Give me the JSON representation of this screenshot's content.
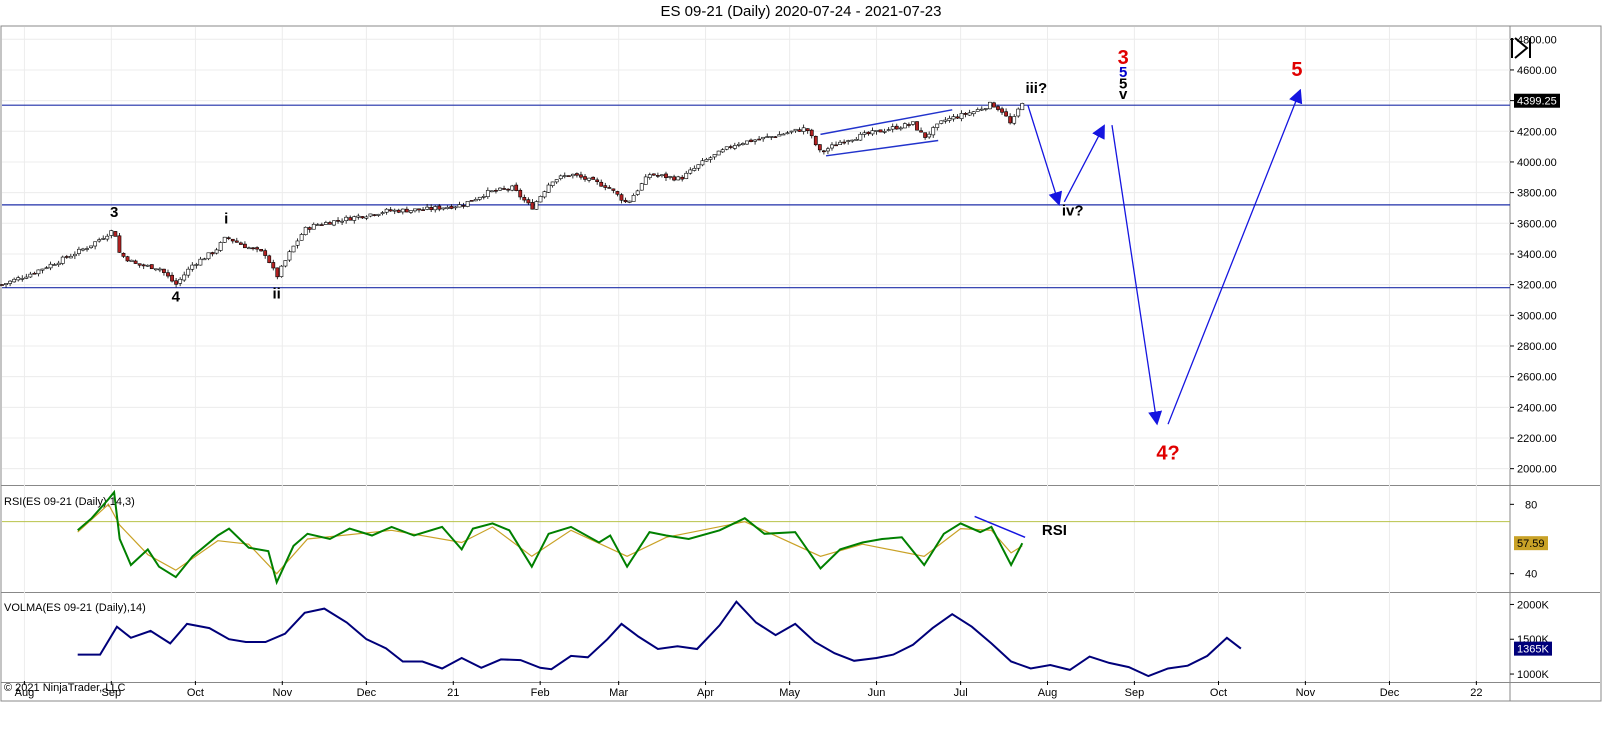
{
  "window": {
    "title": "ES 09-21 (Daily)  2020-07-24 - 2021-07-23"
  },
  "copyright": "© 2021 NinjaTrader, LLC",
  "chart_data": [
    {
      "type": "candlestick",
      "panel": "price",
      "instrument": "ES 09-21 (Daily)",
      "ylim": [
        1900,
        4880
      ],
      "y_ticks": [
        "4800.00",
        "4600.00",
        "4400.00",
        "4200.00",
        "4000.00",
        "3800.00",
        "3600.00",
        "3400.00",
        "3200.00",
        "3000.00",
        "2800.00",
        "2600.00",
        "2400.00",
        "2200.00",
        "2000.00"
      ],
      "last_price": "4399.25",
      "x_months": [
        "Aug",
        "Sep",
        "Oct",
        "Nov",
        "Dec",
        "21",
        "Feb",
        "Mar",
        "Apr",
        "May",
        "Jun",
        "Jul",
        "Aug",
        "Sep",
        "Oct",
        "Nov",
        "Dec",
        "22"
      ],
      "close_path": [
        [
          "2020-07-24",
          3200
        ],
        [
          "2020-08-03",
          3270
        ],
        [
          "2020-08-14",
          3360
        ],
        [
          "2020-08-24",
          3450
        ],
        [
          "2020-09-02",
          3560
        ],
        [
          "2020-09-04",
          3400
        ],
        [
          "2020-09-10",
          3330
        ],
        [
          "2020-09-18",
          3310
        ],
        [
          "2020-09-24",
          3200
        ],
        [
          "2020-09-30",
          3330
        ],
        [
          "2020-10-08",
          3420
        ],
        [
          "2020-10-12",
          3510
        ],
        [
          "2020-10-20",
          3440
        ],
        [
          "2020-10-26",
          3400
        ],
        [
          "2020-10-30",
          3250
        ],
        [
          "2020-11-04",
          3420
        ],
        [
          "2020-11-09",
          3560
        ],
        [
          "2020-11-13",
          3590
        ],
        [
          "2020-11-24",
          3630
        ],
        [
          "2020-12-08",
          3680
        ],
        [
          "2020-12-22",
          3690
        ],
        [
          "2021-01-04",
          3720
        ],
        [
          "2021-01-13",
          3800
        ],
        [
          "2021-01-22",
          3830
        ],
        [
          "2021-01-29",
          3700
        ],
        [
          "2021-02-05",
          3880
        ],
        [
          "2021-02-12",
          3920
        ],
        [
          "2021-02-25",
          3840
        ],
        [
          "2021-03-04",
          3730
        ],
        [
          "2021-03-12",
          3920
        ],
        [
          "2021-03-23",
          3890
        ],
        [
          "2021-04-01",
          4010
        ],
        [
          "2021-04-12",
          4120
        ],
        [
          "2021-04-23",
          4160
        ],
        [
          "2021-05-07",
          4220
        ],
        [
          "2021-05-12",
          4060
        ],
        [
          "2021-05-20",
          4140
        ],
        [
          "2021-06-04",
          4210
        ],
        [
          "2021-06-14",
          4250
        ],
        [
          "2021-06-18",
          4160
        ],
        [
          "2021-06-25",
          4270
        ],
        [
          "2021-07-06",
          4330
        ],
        [
          "2021-07-12",
          4380
        ],
        [
          "2021-07-16",
          4330
        ],
        [
          "2021-07-19",
          4240
        ],
        [
          "2021-07-23",
          4395
        ]
      ],
      "horizontal_lines": [
        4370,
        3720,
        3180
      ],
      "wave_labels": [
        {
          "text": "3",
          "date": "2020-09-02",
          "price": 3640,
          "color": "#000000"
        },
        {
          "text": "4",
          "date": "2020-09-24",
          "price": 3090,
          "color": "#000000"
        },
        {
          "text": "i",
          "date": "2020-10-12",
          "price": 3600,
          "color": "#000000"
        },
        {
          "text": "ii",
          "date": "2020-10-30",
          "price": 3110,
          "color": "#000000"
        },
        {
          "text": "iii?",
          "date": "2021-07-28",
          "price": 4450,
          "color": "#000000"
        },
        {
          "text": "iv?",
          "date": "2021-08-10",
          "price": 3650,
          "color": "#000000"
        },
        {
          "text": "3",
          "date": "2021-08-28",
          "price": 4640,
          "color": "#e00000"
        },
        {
          "text": "5",
          "date": "2021-08-28",
          "price": 4555,
          "color": "#0000cc"
        },
        {
          "text": "5",
          "date": "2021-08-28",
          "price": 4480,
          "color": "#000000"
        },
        {
          "text": "v",
          "date": "2021-08-28",
          "price": 4410,
          "color": "#000000"
        },
        {
          "text": "4?",
          "date": "2021-09-13",
          "price": 2060,
          "color": "#e00000"
        },
        {
          "text": "5",
          "date": "2021-10-29",
          "price": 4560,
          "color": "#e00000"
        }
      ],
      "projection_arrows": [
        [
          [
            "2021-07-25",
            4370
          ],
          [
            "2021-08-05",
            3730
          ]
        ],
        [
          [
            "2021-08-07",
            3740
          ],
          [
            "2021-08-21",
            4230
          ]
        ],
        [
          [
            "2021-08-24",
            4240
          ],
          [
            "2021-09-09",
            2300
          ]
        ],
        [
          [
            "2021-09-13",
            2290
          ],
          [
            "2021-10-30",
            4460
          ]
        ]
      ],
      "wedge_lines": [
        [
          [
            "2021-05-12",
            4180
          ],
          [
            "2021-06-28",
            4340
          ]
        ],
        [
          [
            "2021-05-14",
            4040
          ],
          [
            "2021-06-23",
            4140
          ]
        ]
      ]
    },
    {
      "type": "line",
      "panel": "rsi",
      "title": "RSI(ES 09-21 (Daily),14,3)",
      "ylim": [
        30,
        90
      ],
      "y_ticks": [
        "80",
        "40"
      ],
      "reference_level": 70,
      "last_value": "57.59",
      "annotation": "RSI",
      "series": [
        {
          "name": "RSI",
          "color": "#008000",
          "points": [
            [
              "2020-08-20",
              65
            ],
            [
              "2020-08-25",
              72
            ],
            [
              "2020-08-31",
              83
            ],
            [
              "2020-09-02",
              87
            ],
            [
              "2020-09-04",
              60
            ],
            [
              "2020-09-08",
              45
            ],
            [
              "2020-09-14",
              54
            ],
            [
              "2020-09-18",
              44
            ],
            [
              "2020-09-24",
              38
            ],
            [
              "2020-09-30",
              50
            ],
            [
              "2020-10-09",
              62
            ],
            [
              "2020-10-13",
              66
            ],
            [
              "2020-10-20",
              55
            ],
            [
              "2020-10-27",
              53
            ],
            [
              "2020-10-30",
              35
            ],
            [
              "2020-11-05",
              56
            ],
            [
              "2020-11-10",
              63
            ],
            [
              "2020-11-18",
              60
            ],
            [
              "2020-11-25",
              66
            ],
            [
              "2020-12-03",
              62
            ],
            [
              "2020-12-10",
              67
            ],
            [
              "2020-12-18",
              62
            ],
            [
              "2020-12-28",
              67
            ],
            [
              "2021-01-04",
              54
            ],
            [
              "2021-01-08",
              66
            ],
            [
              "2021-01-15",
              69
            ],
            [
              "2021-01-21",
              65
            ],
            [
              "2021-01-29",
              44
            ],
            [
              "2021-02-04",
              63
            ],
            [
              "2021-02-12",
              67
            ],
            [
              "2021-02-22",
              58
            ],
            [
              "2021-02-26",
              62
            ],
            [
              "2021-03-04",
              44
            ],
            [
              "2021-03-12",
              64
            ],
            [
              "2021-03-18",
              62
            ],
            [
              "2021-03-26",
              60
            ],
            [
              "2021-04-06",
              65
            ],
            [
              "2021-04-15",
              72
            ],
            [
              "2021-04-22",
              63
            ],
            [
              "2021-05-03",
              64
            ],
            [
              "2021-05-12",
              43
            ],
            [
              "2021-05-19",
              54
            ],
            [
              "2021-05-27",
              58
            ],
            [
              "2021-06-03",
              60
            ],
            [
              "2021-06-10",
              61
            ],
            [
              "2021-06-18",
              45
            ],
            [
              "2021-06-25",
              63
            ],
            [
              "2021-07-01",
              69
            ],
            [
              "2021-07-08",
              64
            ],
            [
              "2021-07-12",
              67
            ],
            [
              "2021-07-19",
              45
            ],
            [
              "2021-07-23",
              57.59
            ]
          ]
        },
        {
          "name": "Signal",
          "color": "#c9a227",
          "points": [
            [
              "2020-08-20",
              64
            ],
            [
              "2020-08-31",
              80
            ],
            [
              "2020-09-04",
              68
            ],
            [
              "2020-09-14",
              51
            ],
            [
              "2020-09-24",
              42
            ],
            [
              "2020-10-09",
              59
            ],
            [
              "2020-10-20",
              57
            ],
            [
              "2020-10-30",
              40
            ],
            [
              "2020-11-10",
              60
            ],
            [
              "2020-12-10",
              65
            ],
            [
              "2021-01-04",
              58
            ],
            [
              "2021-01-15",
              67
            ],
            [
              "2021-01-29",
              50
            ],
            [
              "2021-02-12",
              65
            ],
            [
              "2021-03-04",
              50
            ],
            [
              "2021-03-18",
              61
            ],
            [
              "2021-04-15",
              70
            ],
            [
              "2021-05-12",
              50
            ],
            [
              "2021-05-27",
              57
            ],
            [
              "2021-06-18",
              50
            ],
            [
              "2021-07-01",
              66
            ],
            [
              "2021-07-12",
              65
            ],
            [
              "2021-07-19",
              52
            ],
            [
              "2021-07-23",
              56
            ]
          ]
        }
      ],
      "divergence_line": [
        [
          "2021-07-06",
          73
        ],
        [
          "2021-07-24",
          61
        ]
      ]
    },
    {
      "type": "line",
      "panel": "volma",
      "title": "VOLMA(ES 09-21 (Daily),14)",
      "ylim": [
        900,
        2150
      ],
      "y_ticks": [
        "2000K",
        "1500K",
        "1000K"
      ],
      "last_value": "1365K",
      "series": [
        {
          "name": "VOLMA",
          "color": "#00007a",
          "points": [
            [
              "2020-08-20",
              1280
            ],
            [
              "2020-08-28",
              1280
            ],
            [
              "2020-09-03",
              1680
            ],
            [
              "2020-09-08",
              1520
            ],
            [
              "2020-09-15",
              1620
            ],
            [
              "2020-09-22",
              1440
            ],
            [
              "2020-09-28",
              1720
            ],
            [
              "2020-10-06",
              1660
            ],
            [
              "2020-10-13",
              1500
            ],
            [
              "2020-10-19",
              1460
            ],
            [
              "2020-10-26",
              1460
            ],
            [
              "2020-11-02",
              1580
            ],
            [
              "2020-11-09",
              1880
            ],
            [
              "2020-11-16",
              1940
            ],
            [
              "2020-11-24",
              1740
            ],
            [
              "2020-12-01",
              1500
            ],
            [
              "2020-12-08",
              1370
            ],
            [
              "2020-12-14",
              1180
            ],
            [
              "2020-12-21",
              1180
            ],
            [
              "2020-12-28",
              1080
            ],
            [
              "2021-01-04",
              1230
            ],
            [
              "2021-01-11",
              1090
            ],
            [
              "2021-01-18",
              1210
            ],
            [
              "2021-01-25",
              1200
            ],
            [
              "2021-02-01",
              1090
            ],
            [
              "2021-02-05",
              1070
            ],
            [
              "2021-02-12",
              1260
            ],
            [
              "2021-02-18",
              1240
            ],
            [
              "2021-02-25",
              1500
            ],
            [
              "2021-03-02",
              1720
            ],
            [
              "2021-03-08",
              1540
            ],
            [
              "2021-03-15",
              1360
            ],
            [
              "2021-03-22",
              1400
            ],
            [
              "2021-03-29",
              1360
            ],
            [
              "2021-04-06",
              1700
            ],
            [
              "2021-04-12",
              2040
            ],
            [
              "2021-04-19",
              1740
            ],
            [
              "2021-04-26",
              1560
            ],
            [
              "2021-05-03",
              1720
            ],
            [
              "2021-05-10",
              1460
            ],
            [
              "2021-05-17",
              1300
            ],
            [
              "2021-05-24",
              1190
            ],
            [
              "2021-06-01",
              1230
            ],
            [
              "2021-06-07",
              1280
            ],
            [
              "2021-06-14",
              1420
            ],
            [
              "2021-06-21",
              1660
            ],
            [
              "2021-06-28",
              1860
            ],
            [
              "2021-07-05",
              1680
            ],
            [
              "2021-07-12",
              1440
            ],
            [
              "2021-07-19",
              1180
            ],
            [
              "2021-07-26",
              1080
            ],
            [
              "2021-08-02",
              1130
            ],
            [
              "2021-08-09",
              1060
            ],
            [
              "2021-08-16",
              1250
            ],
            [
              "2021-08-23",
              1160
            ],
            [
              "2021-08-30",
              1100
            ],
            [
              "2021-09-06",
              970
            ],
            [
              "2021-09-13",
              1080
            ],
            [
              "2021-09-20",
              1120
            ],
            [
              "2021-09-27",
              1260
            ],
            [
              "2021-10-04",
              1520
            ],
            [
              "2021-10-09",
              1365
            ]
          ]
        }
      ]
    }
  ]
}
